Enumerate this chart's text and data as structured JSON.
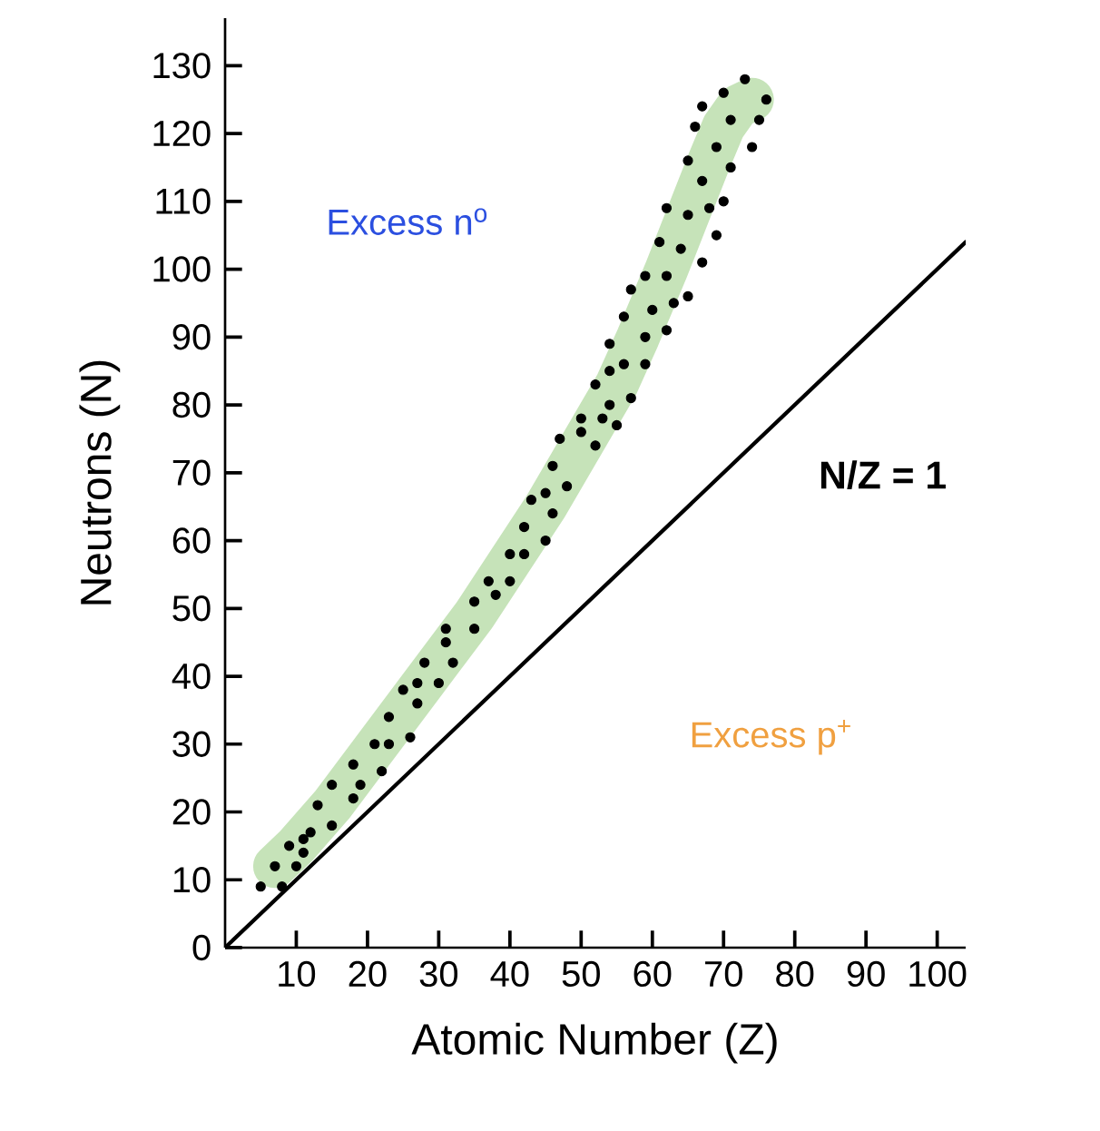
{
  "chart_data": {
    "type": "scatter",
    "xlabel": "Atomic Number (Z)",
    "ylabel": "Neutrons (N)",
    "xlim": [
      0,
      104
    ],
    "ylim": [
      0,
      137
    ],
    "xticks": [
      10,
      20,
      30,
      40,
      50,
      60,
      70,
      80,
      90,
      100
    ],
    "yticks": [
      0,
      10,
      20,
      30,
      40,
      50,
      60,
      70,
      80,
      90,
      100,
      110,
      120,
      130
    ],
    "annotations": [
      "Excess n$^{o}$",
      "Excess p$^{+}$"
    ],
    "marker": "circle",
    "series": [
      {
        "type": "line",
        "color": "#c6e3b9",
        "line_style": "solid",
        "marker": "none",
        "x": [
          7,
          10,
          15,
          20,
          25,
          30,
          35,
          40,
          45,
          50,
          55,
          58,
          62,
          65,
          68,
          70,
          72,
          74
        ],
        "values": [
          12,
          15,
          21,
          28,
          35,
          42,
          49,
          57,
          65,
          74,
          83,
          90,
          100,
          108,
          116,
          121,
          124,
          125
        ]
      },
      {
        "type": "line",
        "name": "N/Z = 1",
        "color": "#000000",
        "line_style": "solid",
        "marker": "none",
        "x": [
          0,
          104
        ],
        "values": [
          0,
          104
        ]
      },
      {
        "color": "#000000",
        "x": [
          5,
          8,
          7,
          10,
          9,
          11,
          11,
          12,
          15,
          13,
          15,
          18,
          18,
          19,
          22,
          21,
          23,
          26,
          23,
          27,
          25,
          27,
          30,
          32,
          28,
          31,
          31,
          35,
          35,
          38,
          37,
          40,
          40,
          42,
          45,
          42,
          46,
          43,
          45,
          48,
          46,
          47,
          52,
          50,
          50,
          53,
          55,
          54,
          57,
          52,
          54,
          56,
          59,
          54,
          59,
          62,
          56,
          60,
          63,
          65,
          57,
          59,
          62,
          67,
          61,
          64,
          69,
          62,
          65,
          68,
          70,
          67,
          65,
          71,
          69,
          74,
          66,
          71,
          75,
          67,
          70,
          73,
          76
        ],
        "values": [
          9,
          9,
          12,
          12,
          15,
          16,
          14,
          17,
          18,
          21,
          24,
          22,
          27,
          24,
          26,
          30,
          30,
          31,
          34,
          36,
          38,
          39,
          39,
          42,
          42,
          45,
          47,
          47,
          51,
          52,
          54,
          54,
          58,
          58,
          60,
          62,
          64,
          66,
          67,
          68,
          71,
          75,
          74,
          76,
          78,
          78,
          77,
          80,
          81,
          83,
          85,
          86,
          86,
          89,
          90,
          91,
          93,
          94,
          95,
          96,
          97,
          99,
          99,
          101,
          104,
          103,
          105,
          109,
          108,
          109,
          110,
          113,
          116,
          115,
          118,
          118,
          121,
          122,
          122,
          124,
          126,
          128,
          125
        ]
      }
    ]
  }
}
